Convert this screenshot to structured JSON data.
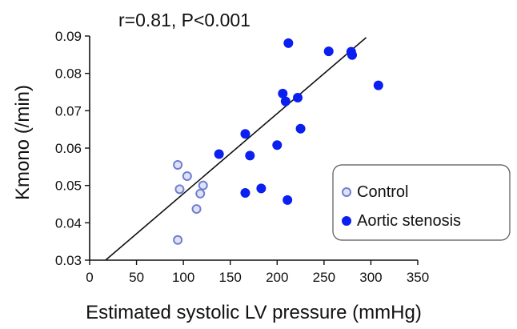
{
  "chart_data": {
    "type": "scatter",
    "title": "",
    "annotation": "r=0.81, P<0.001",
    "xlabel": "Estimated systolic LV pressure (mmHg)",
    "ylabel": "Kmono (/min)",
    "xlim": [
      0,
      350
    ],
    "ylim": [
      0.03,
      0.09
    ],
    "x_ticks": [
      "0",
      "50",
      "100",
      "150",
      "200",
      "250",
      "300",
      "350"
    ],
    "y_ticks": [
      "0.03",
      "0.04",
      "0.05",
      "0.06",
      "0.07",
      "0.08",
      "0.09"
    ],
    "grid": false,
    "legend_position": "bottom-right",
    "series": [
      {
        "name": "Control",
        "marker": "open-circle",
        "color": "#6f7fd0",
        "points": [
          {
            "x": 94,
            "y": 0.0555
          },
          {
            "x": 104,
            "y": 0.0525
          },
          {
            "x": 96,
            "y": 0.049
          },
          {
            "x": 121,
            "y": 0.05
          },
          {
            "x": 118,
            "y": 0.0478
          },
          {
            "x": 114,
            "y": 0.0437
          },
          {
            "x": 94,
            "y": 0.0354
          }
        ]
      },
      {
        "name": "Aortic stenosis",
        "marker": "filled-circle",
        "color": "#0a1ff0",
        "points": [
          {
            "x": 212,
            "y": 0.0881
          },
          {
            "x": 255,
            "y": 0.0859
          },
          {
            "x": 279,
            "y": 0.0858
          },
          {
            "x": 280,
            "y": 0.0849
          },
          {
            "x": 308,
            "y": 0.0768
          },
          {
            "x": 206,
            "y": 0.0746
          },
          {
            "x": 222,
            "y": 0.0735
          },
          {
            "x": 209,
            "y": 0.0725
          },
          {
            "x": 225,
            "y": 0.0652
          },
          {
            "x": 166,
            "y": 0.0638
          },
          {
            "x": 200,
            "y": 0.0608
          },
          {
            "x": 138,
            "y": 0.0584
          },
          {
            "x": 171,
            "y": 0.058
          },
          {
            "x": 183,
            "y": 0.0492
          },
          {
            "x": 166,
            "y": 0.048
          },
          {
            "x": 211,
            "y": 0.0461
          }
        ]
      }
    ],
    "regression_line": {
      "x": [
        17,
        295
      ],
      "y": [
        0.03,
        0.0896
      ]
    }
  }
}
